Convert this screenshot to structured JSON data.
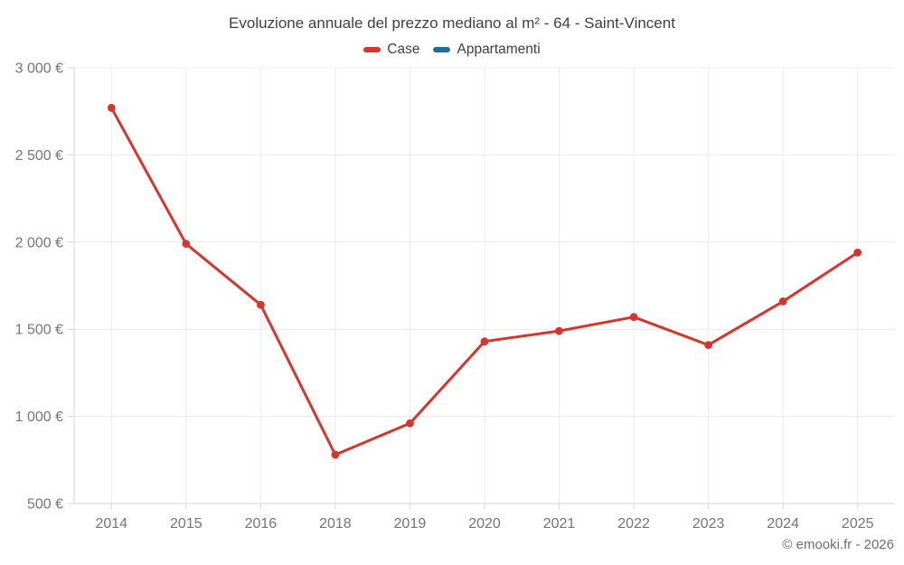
{
  "chart_data": {
    "type": "line",
    "title": "Evoluzione annuale del prezzo mediano al m² - 64 - Saint-Vincent",
    "categories": [
      "2014",
      "2015",
      "2016",
      "2018",
      "2019",
      "2020",
      "2021",
      "2022",
      "2023",
      "2024",
      "2025"
    ],
    "series": [
      {
        "name": "Case",
        "color": "#d9342b",
        "values": [
          2770,
          1990,
          1640,
          780,
          960,
          1430,
          1490,
          1570,
          1410,
          1660,
          1940
        ]
      },
      {
        "name": "Appartamenti",
        "color": "#1c6e9d",
        "values": []
      }
    ],
    "xlabel": "",
    "ylabel": "",
    "ylim": [
      500,
      3000
    ],
    "yticks": [
      {
        "value": 500,
        "label": "500 €"
      },
      {
        "value": 1000,
        "label": "1 000 €"
      },
      {
        "value": 1500,
        "label": "1 500 €"
      },
      {
        "value": 2000,
        "label": "2 000 €"
      },
      {
        "value": 2500,
        "label": "2 500 €"
      },
      {
        "value": 3000,
        "label": "3 000 €"
      }
    ],
    "currency": "€",
    "grid": true,
    "legend_position": "top"
  },
  "colors": {
    "case_red": "#d9342b",
    "appartamenti_blue": "#1c6e9d",
    "grid_line": "#ececec",
    "axis_line": "#d6d6d6",
    "tick_text": "#757575",
    "title_text": "#404040",
    "legend_text": "#3f3f3f",
    "footer_text": "#6e6e6e",
    "background": "#ffffff"
  },
  "footer": {
    "copyright": "© emooki.fr - 2026"
  }
}
